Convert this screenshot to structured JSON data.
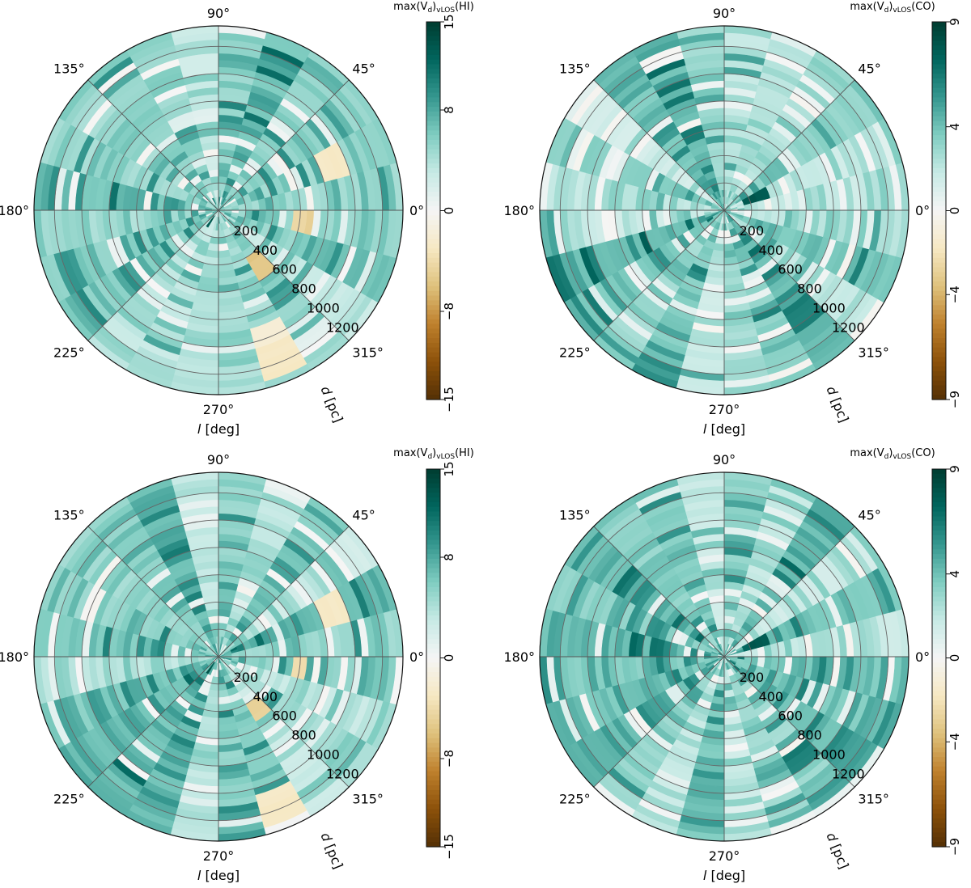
{
  "chart_data": [
    {
      "type": "heatmap",
      "panel": "top-left",
      "projection": "polar",
      "colorbar_label": "max(V_d)_vLOS(HI)",
      "colorbar_label_main": "max(V",
      "colorbar_label_sub1": "d",
      "colorbar_label_mid": ")",
      "colorbar_label_sub2": "vLOS",
      "colorbar_label_end": "(HI)",
      "colorbar_range": [
        -15,
        15
      ],
      "colorbar_ticks": [
        "15",
        "8",
        "0",
        "−8",
        "−15"
      ],
      "colorbar_tick_values": [
        15,
        8,
        0,
        -8,
        -15
      ],
      "angular_axis": {
        "label_italic": "l",
        "label_rest": " [deg]",
        "ticks": [
          "0°",
          "45°",
          "90°",
          "135°",
          "180°",
          "225°",
          "270°",
          "315°"
        ],
        "tick_values": [
          0,
          45,
          90,
          135,
          180,
          225,
          270,
          315
        ]
      },
      "radial_axis": {
        "label_italic": "d",
        "label_rest": " [pc]",
        "ticks": [
          "200",
          "400",
          "600",
          "800",
          "1000",
          "1200"
        ],
        "tick_values": [
          200,
          400,
          600,
          800,
          1000,
          1200
        ],
        "range": [
          0,
          1350
        ]
      },
      "sector_width_deg": 15,
      "shell_width_pc": 50,
      "map_seed": 11,
      "features": [
        {
          "l": 352,
          "dl": 16,
          "d": [
            570,
            680
          ],
          "v": -5
        },
        {
          "l": 301,
          "dl": 14,
          "d": [
            420,
            580
          ],
          "v": -6
        },
        {
          "l": 291,
          "dl": 10,
          "d": [
            1060,
            1300
          ],
          "v": -3
        },
        {
          "l": 297,
          "dl": 10,
          "d": [
            900,
            1050
          ],
          "v": -2
        },
        {
          "l": 20,
          "dl": 12,
          "d": [
            820,
            980
          ],
          "v": -3
        },
        {
          "l": 180,
          "dl": 12,
          "d": [
            950,
            1050
          ],
          "v": -2
        },
        {
          "l": 238,
          "dl": 10,
          "d": [
            60,
            200
          ],
          "v": 14
        },
        {
          "l": 330,
          "dl": 12,
          "d": [
            600,
            760
          ],
          "v": 14
        }
      ]
    },
    {
      "type": "heatmap",
      "panel": "top-right",
      "projection": "polar",
      "colorbar_label": "max(V_d)_vLOS(CO)",
      "colorbar_label_main": "max(V",
      "colorbar_label_sub1": "d",
      "colorbar_label_mid": ")",
      "colorbar_label_sub2": "vLOS",
      "colorbar_label_end": "(CO)",
      "colorbar_range": [
        -9,
        9
      ],
      "colorbar_ticks": [
        "9",
        "4",
        "0",
        "−4",
        "−9"
      ],
      "colorbar_tick_values": [
        9,
        4,
        0,
        -4,
        -9
      ],
      "angular_axis": {
        "label_italic": "l",
        "label_rest": " [deg]",
        "ticks": [
          "0°",
          "45°",
          "90°",
          "135°",
          "180°",
          "225°",
          "270°",
          "315°"
        ],
        "tick_values": [
          0,
          45,
          90,
          135,
          180,
          225,
          270,
          315
        ]
      },
      "radial_axis": {
        "label_italic": "d",
        "label_rest": " [pc]",
        "ticks": [
          "200",
          "400",
          "600",
          "800",
          "1000",
          "1200"
        ],
        "tick_values": [
          200,
          400,
          600,
          800,
          1000,
          1200
        ],
        "range": [
          0,
          1350
        ]
      },
      "sector_width_deg": 15,
      "shell_width_pc": 50,
      "map_seed": 23,
      "features": [
        {
          "l": 30,
          "dl": 12,
          "d": [
            500,
            900
          ],
          "v": 8.5
        },
        {
          "l": 20,
          "dl": 10,
          "d": [
            150,
            350
          ],
          "v": 8
        },
        {
          "l": 270,
          "dl": 14,
          "d": [
            900,
            1150
          ],
          "v": 8
        },
        {
          "l": 305,
          "dl": 8,
          "d": [
            850,
            1000
          ],
          "v": 7
        },
        {
          "l": 0,
          "dl": 8,
          "d": [
            1150,
            1300
          ],
          "v": 7
        },
        {
          "l": 300,
          "dl": 10,
          "d": [
            700,
            800
          ],
          "v": -1
        }
      ]
    },
    {
      "type": "heatmap",
      "panel": "bottom-left",
      "projection": "polar",
      "colorbar_label": "max(V_d)_vLOS(HI)",
      "colorbar_label_main": "max(V",
      "colorbar_label_sub1": "d",
      "colorbar_label_mid": ")",
      "colorbar_label_sub2": "vLOS",
      "colorbar_label_end": "(HI)",
      "colorbar_range": [
        -15,
        15
      ],
      "colorbar_ticks": [
        "15",
        "8",
        "0",
        "−8",
        "−15"
      ],
      "colorbar_tick_values": [
        15,
        8,
        0,
        -8,
        -15
      ],
      "angular_axis": {
        "label_italic": "l",
        "label_rest": " [deg]",
        "ticks": [
          "0°",
          "45°",
          "90°",
          "135°",
          "180°",
          "225°",
          "270°",
          "315°"
        ],
        "tick_values": [
          0,
          45,
          90,
          135,
          180,
          225,
          270,
          315
        ]
      },
      "radial_axis": {
        "label_italic": "d",
        "label_rest": " [pc]",
        "ticks": [
          "200",
          "400",
          "600",
          "800",
          "1000",
          "1200"
        ],
        "tick_values": [
          200,
          400,
          600,
          800,
          1000,
          1200
        ],
        "range": [
          0,
          1350
        ]
      },
      "sector_width_deg": 15,
      "shell_width_pc": 50,
      "map_seed": 37,
      "features": [
        {
          "l": 352,
          "dl": 16,
          "d": [
            560,
            660
          ],
          "v": -4
        },
        {
          "l": 301,
          "dl": 14,
          "d": [
            420,
            560
          ],
          "v": -5
        },
        {
          "l": 292,
          "dl": 10,
          "d": [
            1060,
            1300
          ],
          "v": -3
        },
        {
          "l": 20,
          "dl": 12,
          "d": [
            820,
            980
          ],
          "v": -3
        },
        {
          "l": 238,
          "dl": 10,
          "d": [
            60,
            200
          ],
          "v": 14
        },
        {
          "l": 330,
          "dl": 12,
          "d": [
            620,
            760
          ],
          "v": 13
        }
      ]
    },
    {
      "type": "heatmap",
      "panel": "bottom-right",
      "projection": "polar",
      "colorbar_label": "max(V_d)_vLOS(CO)",
      "colorbar_label_main": "max(V",
      "colorbar_label_sub1": "d",
      "colorbar_label_mid": ")",
      "colorbar_label_sub2": "vLOS",
      "colorbar_label_end": "(CO)",
      "colorbar_range": [
        -9,
        9
      ],
      "colorbar_ticks": [
        "9",
        "4",
        "0",
        "−4",
        "−9"
      ],
      "colorbar_tick_values": [
        9,
        4,
        0,
        -4,
        -9
      ],
      "angular_axis": {
        "label_italic": "l",
        "label_rest": " [deg]",
        "ticks": [
          "0°",
          "45°",
          "90°",
          "135°",
          "180°",
          "225°",
          "270°",
          "315°"
        ],
        "tick_values": [
          0,
          45,
          90,
          135,
          180,
          225,
          270,
          315
        ]
      },
      "radial_axis": {
        "label_italic": "d",
        "label_rest": " [pc]",
        "ticks": [
          "200",
          "400",
          "600",
          "800",
          "1000",
          "1200"
        ],
        "tick_values": [
          200,
          400,
          600,
          800,
          1000,
          1200
        ],
        "range": [
          0,
          1350
        ]
      },
      "sector_width_deg": 15,
      "shell_width_pc": 50,
      "map_seed": 53,
      "features": [
        {
          "l": 30,
          "dl": 12,
          "d": [
            500,
            900
          ],
          "v": 8.5
        },
        {
          "l": 20,
          "dl": 10,
          "d": [
            150,
            350
          ],
          "v": 8
        },
        {
          "l": 270,
          "dl": 14,
          "d": [
            900,
            1150
          ],
          "v": 8
        },
        {
          "l": 305,
          "dl": 8,
          "d": [
            850,
            1000
          ],
          "v": 7
        },
        {
          "l": 0,
          "dl": 8,
          "d": [
            1150,
            1300
          ],
          "v": 7
        }
      ]
    }
  ],
  "colormap": {
    "name": "BrBG",
    "stops": [
      "#543005",
      "#8c510a",
      "#bf812d",
      "#dfc27d",
      "#f6e8c3",
      "#f5f5f5",
      "#c7eae5",
      "#80cdc1",
      "#35978f",
      "#01665e",
      "#003c30"
    ]
  }
}
